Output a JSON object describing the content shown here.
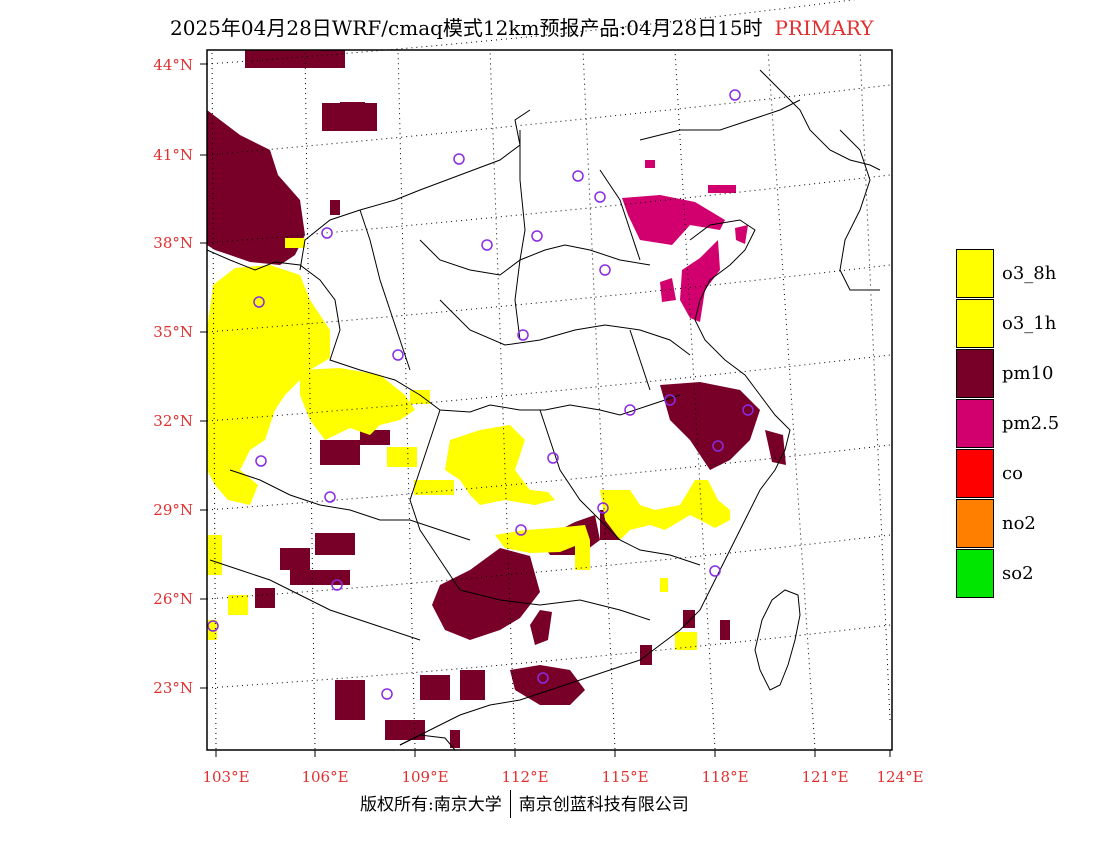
{
  "title": {
    "main": "2025年04月28日WRF/cmaq模式12km预报产品:04月28日15时",
    "tag": "PRIMARY"
  },
  "axes": {
    "lat_labels": [
      "44°N",
      "41°N",
      "38°N",
      "35°N",
      "32°N",
      "29°N",
      "26°N",
      "23°N"
    ],
    "lon_labels": [
      "103°E",
      "106°E",
      "109°E",
      "112°E",
      "115°E",
      "118°E",
      "121°E",
      "124°E"
    ]
  },
  "legend": [
    {
      "label": "o3_8h",
      "color": "#ffff00"
    },
    {
      "label": "o3_1h",
      "color": "#ffff00"
    },
    {
      "label": "pm10",
      "color": "#780028"
    },
    {
      "label": "pm2.5",
      "color": "#d2006e"
    },
    {
      "label": "co",
      "color": "#ff0000"
    },
    {
      "label": "no2",
      "color": "#ff7f00"
    },
    {
      "label": "so2",
      "color": "#00e600"
    }
  ],
  "footer": {
    "left": "版权所有:南京大学",
    "right": "南京创蓝科技有限公司"
  }
}
